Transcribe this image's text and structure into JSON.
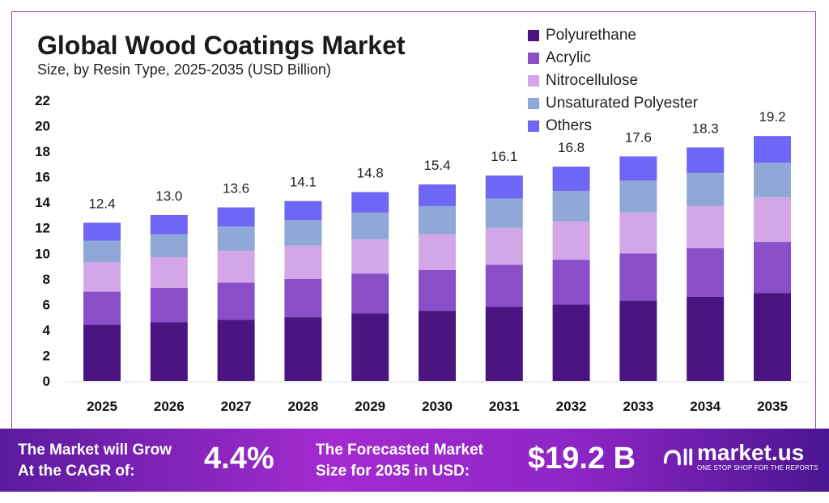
{
  "chart_data": {
    "type": "bar",
    "stacked": true,
    "title": "Global Wood Coatings Market",
    "subtitle": "Size, by Resin Type, 2025-2035 (USD Billion)",
    "categories": [
      "2025",
      "2026",
      "2027",
      "2028",
      "2029",
      "2030",
      "2031",
      "2032",
      "2033",
      "2034",
      "2035"
    ],
    "series": [
      {
        "name": "Polyurethane",
        "color": "#4a1580",
        "values": [
          4.4,
          4.6,
          4.8,
          5.0,
          5.3,
          5.5,
          5.8,
          6.0,
          6.3,
          6.6,
          6.9
        ]
      },
      {
        "name": "Acrylic",
        "color": "#8a4fc8",
        "values": [
          2.6,
          2.7,
          2.9,
          3.0,
          3.1,
          3.2,
          3.3,
          3.5,
          3.7,
          3.8,
          4.0
        ]
      },
      {
        "name": "Nitrocellulose",
        "color": "#d3a6e8",
        "values": [
          2.3,
          2.4,
          2.5,
          2.6,
          2.7,
          2.8,
          2.9,
          3.0,
          3.2,
          3.3,
          3.5
        ]
      },
      {
        "name": "Unsaturated Polyester",
        "color": "#8fa8d8",
        "values": [
          1.7,
          1.8,
          1.9,
          2.0,
          2.1,
          2.2,
          2.3,
          2.4,
          2.5,
          2.6,
          2.7
        ]
      },
      {
        "name": "Others",
        "color": "#6e66f5",
        "values": [
          1.4,
          1.5,
          1.5,
          1.5,
          1.6,
          1.7,
          1.8,
          1.9,
          1.9,
          2.0,
          2.1
        ]
      }
    ],
    "totals": [
      "12.4",
      "13.0",
      "13.6",
      "14.1",
      "14.8",
      "15.4",
      "16.1",
      "16.8",
      "17.6",
      "18.3",
      "19.2"
    ],
    "yticks": [
      0,
      2,
      4,
      6,
      8,
      10,
      12,
      14,
      16,
      18,
      20,
      22
    ],
    "ylim": [
      0,
      22
    ],
    "grid": false,
    "legend_position": "top-right"
  },
  "footer": {
    "cagr_label_1": "The Market will Grow",
    "cagr_label_2": "At the CAGR of:",
    "cagr_value": "4.4%",
    "size_label_1": "The Forecasted Market",
    "size_label_2": "Size for 2035 in USD:",
    "size_value": "$19.2 B",
    "brand": "market.us",
    "brand_tagline": "ONE STOP SHOP FOR THE REPORTS"
  }
}
